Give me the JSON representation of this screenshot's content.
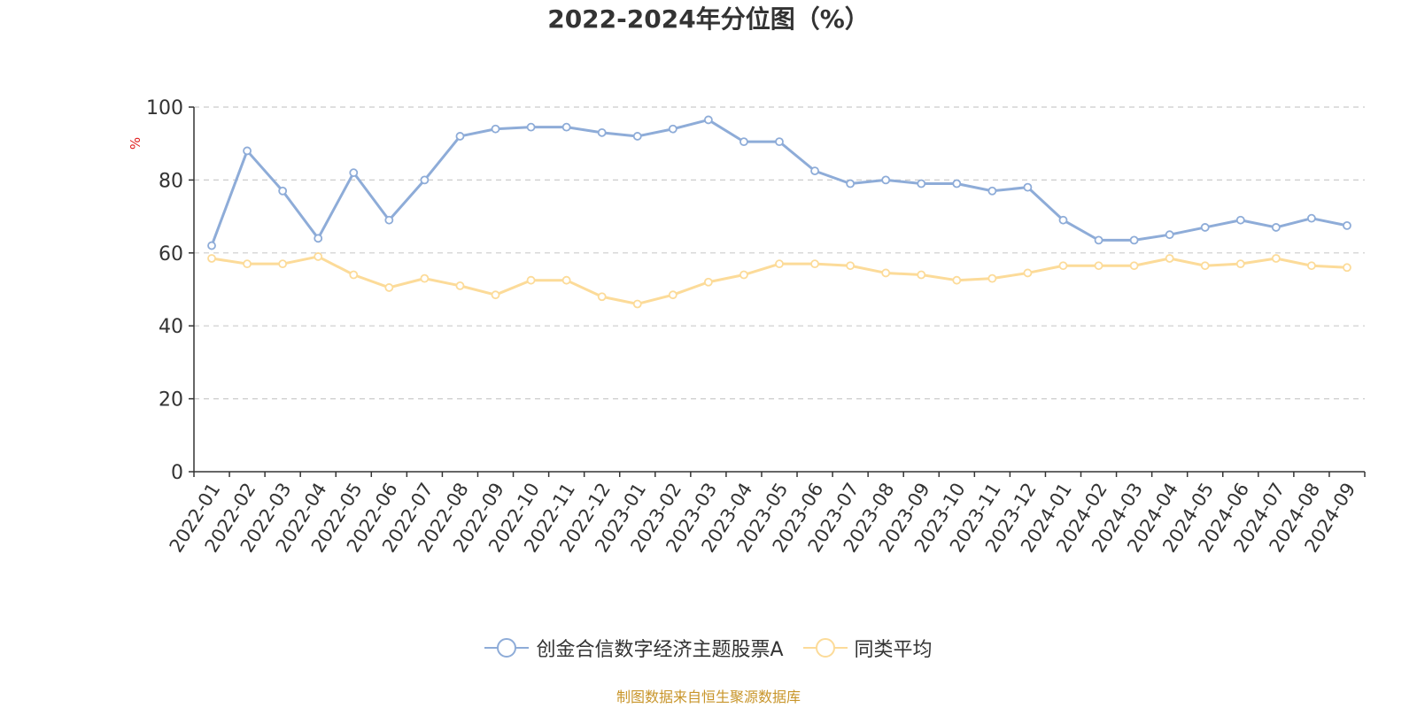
{
  "chart_data": {
    "type": "line",
    "title": "2022-2024年分位图（%）",
    "ylabel": "%",
    "xlabel": "",
    "ylim": [
      0,
      100
    ],
    "yticks": [
      0,
      20,
      40,
      60,
      80,
      100
    ],
    "grid": true,
    "legend_position": "bottom-center",
    "categories": [
      "2022-01",
      "2022-02",
      "2022-03",
      "2022-04",
      "2022-05",
      "2022-06",
      "2022-07",
      "2022-08",
      "2022-09",
      "2022-10",
      "2022-11",
      "2022-12",
      "2023-01",
      "2023-02",
      "2023-03",
      "2023-04",
      "2023-05",
      "2023-06",
      "2023-07",
      "2023-08",
      "2023-09",
      "2023-10",
      "2023-11",
      "2023-12",
      "2024-01",
      "2024-02",
      "2024-03",
      "2024-04",
      "2024-05",
      "2024-06",
      "2024-07",
      "2024-08",
      "2024-09"
    ],
    "series": [
      {
        "name": "创金合信数字经济主题股票A",
        "color": "#8eacd8",
        "values": [
          62,
          88,
          77,
          64,
          82,
          69,
          80,
          92,
          94,
          94.5,
          94.5,
          93,
          92,
          94,
          96.5,
          90.5,
          90.5,
          82.5,
          79,
          80,
          79,
          79,
          77,
          78,
          69,
          63.5,
          63.5,
          65,
          67,
          69,
          67,
          69.5,
          67.5
        ]
      },
      {
        "name": "同类平均",
        "color": "#fcdb99",
        "values": [
          58.5,
          57,
          57,
          59,
          54,
          50.5,
          53,
          51,
          48.5,
          52.5,
          52.5,
          48,
          46,
          48.5,
          52,
          54,
          57,
          57,
          56.5,
          54.5,
          54,
          52.5,
          53,
          54.5,
          56.5,
          56.5,
          56.5,
          58.5,
          56.5,
          57,
          58.5,
          56.5,
          56
        ]
      }
    ]
  },
  "source_note": "制图数据来自恒生聚源数据库",
  "colors": {
    "axis": "#333333",
    "grid": "#cccccc",
    "ylabel": "#e02020",
    "source": "#c8952a"
  }
}
